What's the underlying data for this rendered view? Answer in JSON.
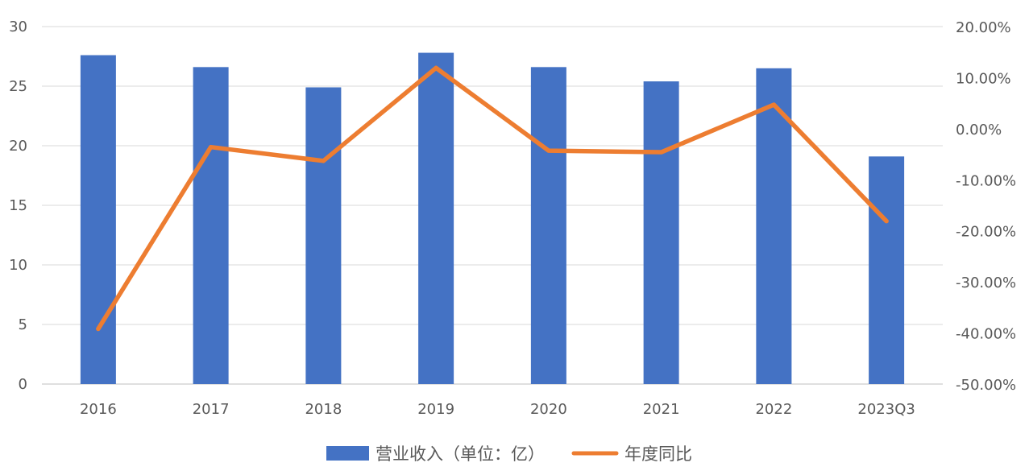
{
  "chart_data": {
    "type": "bar",
    "categories": [
      "2016",
      "2017",
      "2018",
      "2019",
      "2020",
      "2021",
      "2022",
      "2023Q3"
    ],
    "series": [
      {
        "name": "营业收入（单位：亿）",
        "type": "bar",
        "axis": "left",
        "color": "#4472C4",
        "values": [
          27.6,
          26.6,
          24.9,
          27.8,
          26.6,
          25.4,
          26.5,
          19.1
        ]
      },
      {
        "name": "年度同比",
        "type": "line",
        "axis": "right",
        "color": "#ED7D31",
        "values": [
          -39.2,
          -3.6,
          -6.3,
          11.9,
          -4.3,
          -4.6,
          4.7,
          -18.1
        ]
      }
    ],
    "y_left": {
      "min": 0,
      "max": 30,
      "step": 5,
      "ticks": [
        "0",
        "5",
        "10",
        "15",
        "20",
        "25",
        "30"
      ]
    },
    "y_right": {
      "min": -50,
      "max": 20,
      "step": 10,
      "ticks": [
        "-50.00%",
        "-40.00%",
        "-30.00%",
        "-20.00%",
        "-10.00%",
        "0.00%",
        "10.00%",
        "20.00%"
      ]
    },
    "grid": true,
    "legend": "bottom-center"
  }
}
